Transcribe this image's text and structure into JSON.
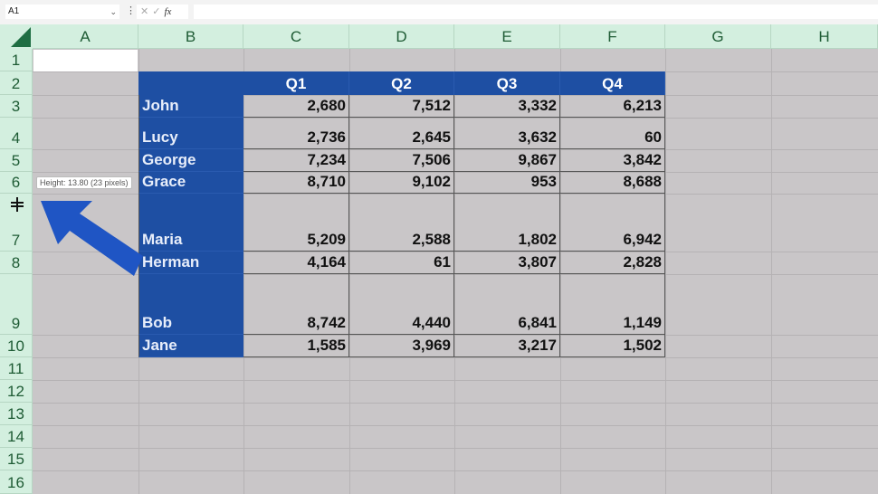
{
  "formula_bar": {
    "name_box": "A1",
    "cancel": "✕",
    "enter": "✓",
    "fx": "fx",
    "value": ""
  },
  "columns": [
    "A",
    "B",
    "C",
    "D",
    "E",
    "F",
    "G",
    "H"
  ],
  "rows": [
    "1",
    "2",
    "3",
    "4",
    "5",
    "6",
    "7",
    "8",
    "9",
    "10",
    "11",
    "12",
    "13",
    "14",
    "15",
    "16"
  ],
  "table": {
    "headers": [
      "",
      "Q1",
      "Q2",
      "Q3",
      "Q4"
    ],
    "data": [
      [
        "John",
        "2,680",
        "7,512",
        "3,332",
        "6,213"
      ],
      [
        "Lucy",
        "2,736",
        "2,645",
        "3,632",
        "60"
      ],
      [
        "George",
        "7,234",
        "7,506",
        "9,867",
        "3,842"
      ],
      [
        "Grace",
        "8,710",
        "9,102",
        "953",
        "8,688"
      ],
      [
        "Maria",
        "5,209",
        "2,588",
        "1,802",
        "6,942"
      ],
      [
        "Herman",
        "4,164",
        "61",
        "3,807",
        "2,828"
      ],
      [
        "Bob",
        "8,742",
        "4,440",
        "6,841",
        "1,149"
      ],
      [
        "Jane",
        "1,585",
        "3,969",
        "3,217",
        "1,502"
      ]
    ]
  },
  "tooltip": "Height: 13.80 (23 pixels)",
  "colors": {
    "header_blue": "#1e4fa3",
    "arrow": "#1f55c4",
    "grid_bg": "#c9c6c8",
    "header_green": "#d3efdf"
  }
}
